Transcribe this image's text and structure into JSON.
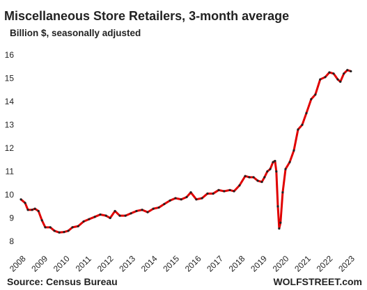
{
  "chart_data": {
    "type": "line",
    "title": "Miscellaneous  Store Retailers, 3-month average",
    "subtitle": "Billion $, seasonally adjusted",
    "source": "Source: Census Bureau",
    "watermark": "WOLFSTREET.com",
    "x": [
      2008.06,
      2008.25,
      2008.38,
      2008.57,
      2008.7,
      2008.86,
      2009.02,
      2009.17,
      2009.4,
      2009.59,
      2009.81,
      2010.03,
      2010.22,
      2010.41,
      2010.67,
      2010.92,
      2011.17,
      2011.43,
      2011.68,
      2011.94,
      2012.13,
      2012.35,
      2012.57,
      2012.83,
      2013.08,
      2013.33,
      2013.59,
      2013.84,
      2014.1,
      2014.35,
      2014.6,
      2014.86,
      2015.11,
      2015.37,
      2015.62,
      2015.81,
      2016.06,
      2016.32,
      2016.57,
      2016.83,
      2017.08,
      2017.33,
      2017.59,
      2017.78,
      2018.03,
      2018.29,
      2018.48,
      2018.67,
      2018.86,
      2019.05,
      2019.17,
      2019.3,
      2019.43,
      2019.56,
      2019.65,
      2019.71,
      2019.78,
      2019.84,
      2019.9,
      2020.0,
      2020.13,
      2020.32,
      2020.51,
      2020.7,
      2020.89,
      2021.08,
      2021.3,
      2021.49,
      2021.71,
      2021.94,
      2022.13,
      2022.32,
      2022.51,
      2022.63,
      2022.79,
      2022.95,
      2023.11
    ],
    "series": [
      {
        "color": "#e00000",
        "marker_color": "#222222",
        "values": [
          9.8,
          9.65,
          9.35,
          9.35,
          9.4,
          9.3,
          8.9,
          8.6,
          8.6,
          8.45,
          8.38,
          8.4,
          8.45,
          8.6,
          8.65,
          8.85,
          8.95,
          9.05,
          9.15,
          9.1,
          9.0,
          9.3,
          9.1,
          9.1,
          9.2,
          9.3,
          9.35,
          9.25,
          9.4,
          9.45,
          9.6,
          9.75,
          9.85,
          9.8,
          9.9,
          10.1,
          9.8,
          9.85,
          10.05,
          10.05,
          10.2,
          10.15,
          10.2,
          10.15,
          10.4,
          10.8,
          10.75,
          10.75,
          10.6,
          10.55,
          10.75,
          11.0,
          11.1,
          11.4,
          11.45,
          11.0,
          9.5,
          8.55,
          8.8,
          10.1,
          11.1,
          11.4,
          11.9,
          12.8,
          13.0,
          13.5,
          14.1,
          14.3,
          14.95,
          15.05,
          15.25,
          15.2,
          14.95,
          14.85,
          15.2,
          15.35,
          15.3
        ]
      }
    ],
    "xlim": [
      2007.9,
      2023.75
    ],
    "xticks": [
      2008,
      2009,
      2010,
      2011,
      2012,
      2013,
      2014,
      2015,
      2016,
      2017,
      2018,
      2019,
      2020,
      2021,
      2022,
      2023
    ],
    "ylim": [
      8,
      16
    ],
    "yticks": [
      8,
      9,
      10,
      11,
      12,
      13,
      14,
      15,
      16
    ],
    "grid": false
  }
}
